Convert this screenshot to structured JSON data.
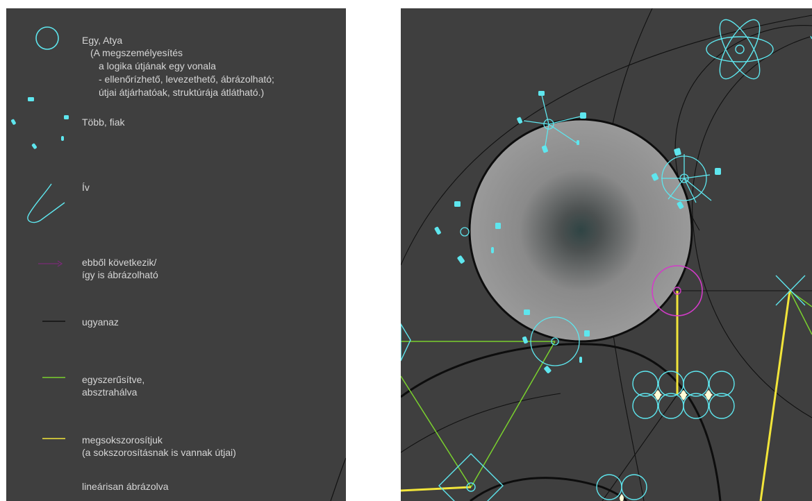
{
  "legend": {
    "items": [
      {
        "label": "Egy, Atya",
        "icon": "circle-icon"
      },
      {
        "label": "(A megszemélyesítés",
        "icon": ""
      },
      {
        "label": "a logika útjának egy vonala",
        "icon": ""
      },
      {
        "label": "- ellenőrízhető, levezethető, ábrázolható;",
        "icon": ""
      },
      {
        "label": "útjai átjárhatóak, struktúrája átlátható.)",
        "icon": ""
      },
      {
        "label": "Több, fiak",
        "icon": "dots-icon"
      },
      {
        "label": "Ív",
        "icon": "arc-icon"
      },
      {
        "label": "ebből következik/",
        "icon": "arrow-icon"
      },
      {
        "label": "így is ábrázolható",
        "icon": ""
      },
      {
        "label": "ugyanaz",
        "icon": "black-line-icon"
      },
      {
        "label": "egyszerűsítve,",
        "icon": "green-line-icon"
      },
      {
        "label": "absztrahálva",
        "icon": ""
      },
      {
        "label": "megsokszorosítjuk",
        "icon": "yellow-line-icon"
      },
      {
        "label": "(a sokszorosításnak is vannak útjai)",
        "icon": ""
      },
      {
        "label": "lineárisan ábrázolva",
        "icon": ""
      }
    ]
  },
  "colors": {
    "panel": "#3f3f3f",
    "cyan": "#5ee6ee",
    "green": "#7ad12e",
    "yellow": "#f2e53a",
    "magenta": "#d23cc8",
    "purple": "#7a2a78",
    "black": "#111111"
  }
}
